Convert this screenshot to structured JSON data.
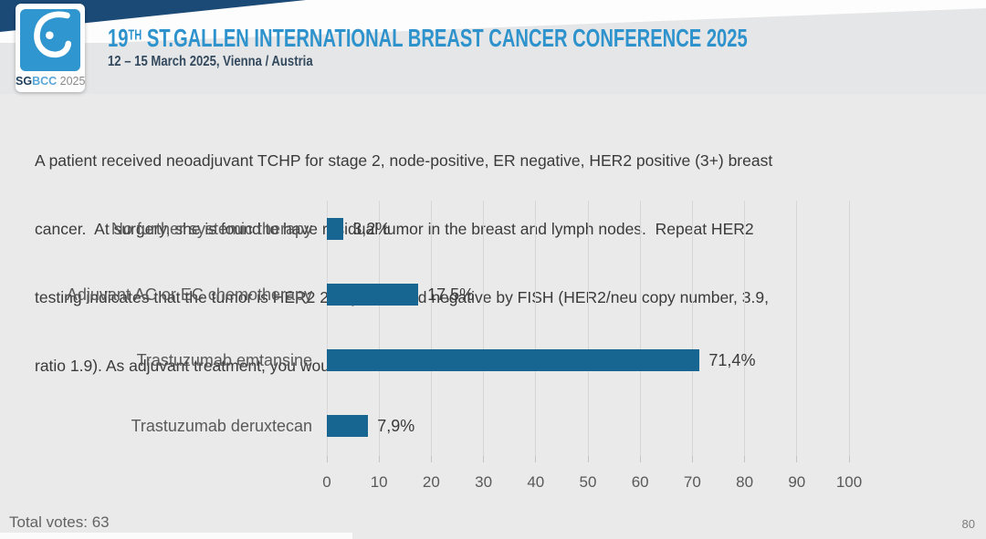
{
  "slide": {
    "header": {
      "logo": {
        "icon": "sgbcc-breast-icon",
        "text_sg": "SG",
        "text_bcc": "BCC",
        "text_year": " 2025"
      },
      "title_num": "19",
      "title_sup": "TH",
      "title_rest": " ST.GALLEN INTERNATIONAL BREAST CANCER CONFERENCE 2025",
      "subtitle": "12 – 15 March 2025, Vienna / Austria"
    },
    "question_lines": [
      "A patient received neoadjuvant TCHP for stage 2, node-positive, ER negative, HER2 positive (3+) breast",
      "cancer.  At surgery, she is found to have residual tumor in the breast and lymph nodes.  Repeat HER2",
      "testing indicates that the tumor is HER2 2+ by IHC, and negative by FISH (HER2/neu copy number, 3.9,",
      "ratio 1.9). As adjuvant treatment, you would recommend:"
    ],
    "footer": {
      "total_votes": "Total votes: 63",
      "page_number": "80"
    }
  },
  "chart_data": {
    "type": "bar",
    "orientation": "horizontal",
    "title": "",
    "xlabel": "",
    "ylabel": "",
    "categories": [
      "No further systemic therapy",
      "Adjuvant AC or EC chemotherapy",
      "Trastuzumab emtansine",
      "Trastuzumab deruxtecan"
    ],
    "values": [
      3.2,
      17.5,
      71.4,
      7.9
    ],
    "value_labels": [
      "3,2%",
      "17,5%",
      "71,4%",
      "7,9%"
    ],
    "total_votes": 63,
    "xlim": [
      0,
      100
    ],
    "xticks": [
      0,
      10,
      20,
      30,
      40,
      50,
      60,
      70,
      80,
      90,
      100
    ],
    "grid": true,
    "legend": false,
    "bar_color": "#176591"
  },
  "colors": {
    "background": "#eaeaea",
    "header_band": "#e5e6e7",
    "navy_accent": "#1c4a77",
    "title_blue": "#2e93cc",
    "subtitle_navy": "#33495e",
    "logo_blue": "#3096cf",
    "bar_blue": "#176591",
    "gridline": "#d6d6d6",
    "text_gray": "#595959",
    "text_dark": "#3a3a3a"
  }
}
